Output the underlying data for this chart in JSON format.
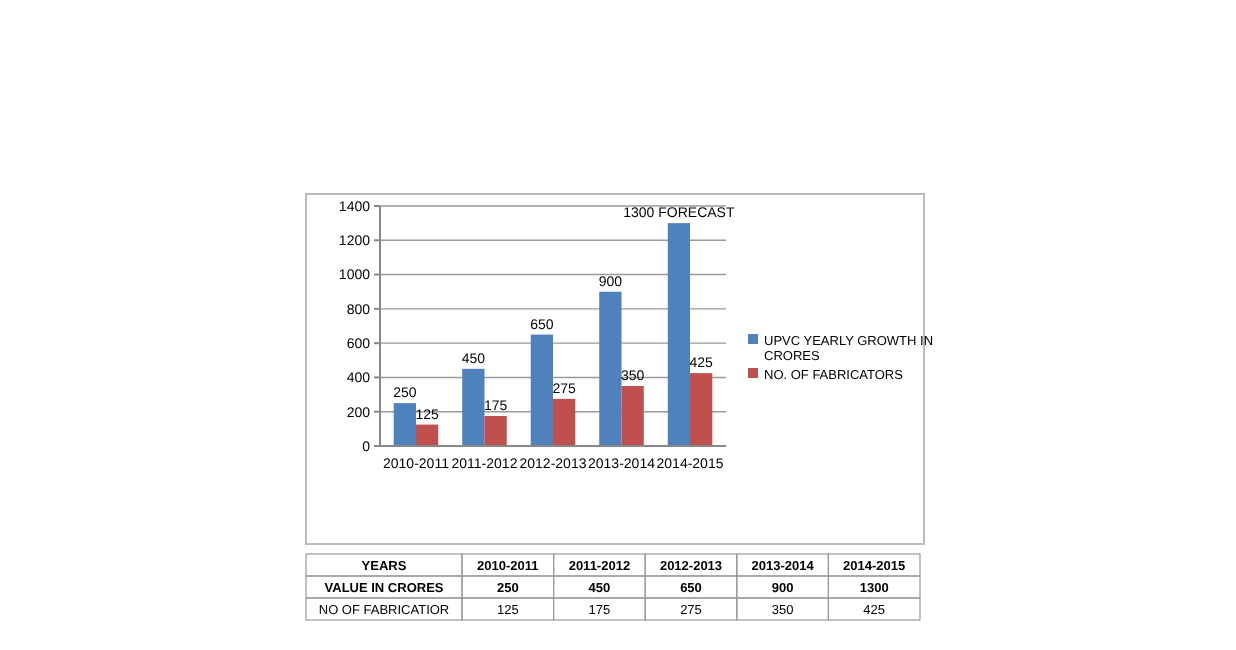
{
  "chart_data": [
    {
      "type": "bar",
      "categories": [
        "2010-2011",
        "2011-2012",
        "2012-2013",
        "2013-2014",
        "2014-2015"
      ],
      "series": [
        {
          "name": "UPVC YEARLY GROWTH IN CRORES",
          "color": "#4f81bd",
          "values": [
            250,
            450,
            650,
            900,
            1300
          ],
          "value_labels": [
            "250",
            "450",
            "650",
            "900",
            "1300 FORECAST"
          ]
        },
        {
          "name": "NO. OF FABRICATORS",
          "color": "#c0504d",
          "values": [
            125,
            175,
            275,
            350,
            425
          ],
          "value_labels": [
            "125",
            "175",
            "275",
            "350",
            "425"
          ]
        }
      ],
      "ylim": [
        0,
        1400
      ],
      "yticks": [
        0,
        200,
        400,
        600,
        800,
        1000,
        1200,
        1400
      ],
      "grid": "y",
      "legend": "right"
    },
    {
      "type": "other",
      "xlabel": "YEARS",
      "categories": [
        "2010-2011",
        "2011-2012",
        "2012-2013",
        "2013-2014",
        "2014-2015"
      ],
      "data_labels": true,
      "series": [
        {
          "name": "VALUE IN CRORES",
          "values": [
            250,
            450,
            650,
            900,
            1300
          ]
        },
        {
          "name": "NO OF FABRICATIOR",
          "values": [
            125,
            175,
            275,
            350,
            425
          ]
        }
      ]
    }
  ]
}
